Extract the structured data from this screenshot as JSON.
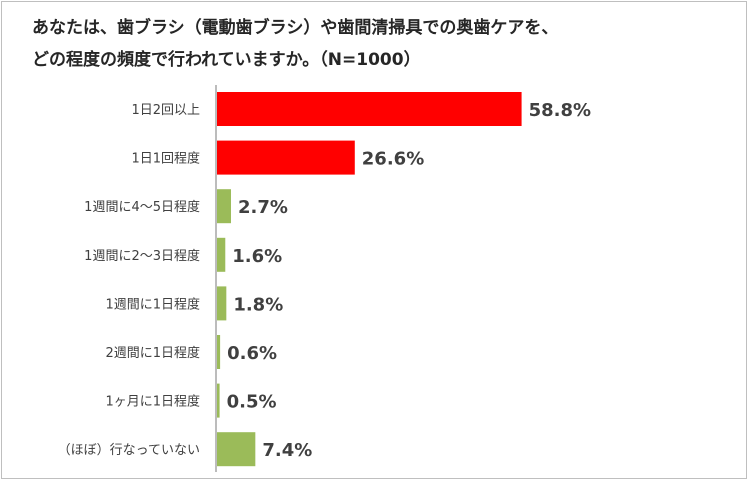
{
  "title_lines": [
    "あなたは、歯ブラシ（電動歯ブラシ）や歯間清掃具での奥歯ケアを、",
    "どの程度の頻度で行われていますか。（N=1000）"
  ],
  "colors": {
    "highlight": "#ff0000",
    "default": "#9bbb59",
    "axis": "#a6a6a6"
  },
  "chart_data": {
    "type": "bar",
    "orientation": "horizontal",
    "title": "あなたは、歯ブラシ（電動歯ブラシ）や歯間清掃具での奥歯ケアを、どの程度の頻度で行われていますか。（N=1000）",
    "unit": "%",
    "categories": [
      "1日2回以上",
      "1日1回程度",
      "1週間に4～5日程度",
      "1週間に2～3日程度",
      "1週間に1日程度",
      "2週間に1日程度",
      "1ヶ月に1日程度",
      "（ほぼ）行なっていない"
    ],
    "values": [
      58.8,
      26.6,
      2.7,
      1.6,
      1.8,
      0.6,
      0.5,
      7.4
    ],
    "value_labels": [
      "58.8%",
      "26.6%",
      "2.7%",
      "1.6%",
      "1.8%",
      "0.6%",
      "0.5%",
      "7.4%"
    ],
    "highlight_indices": [
      0,
      1
    ],
    "xlim": [
      0,
      60
    ],
    "grid": false,
    "legend": "none"
  }
}
